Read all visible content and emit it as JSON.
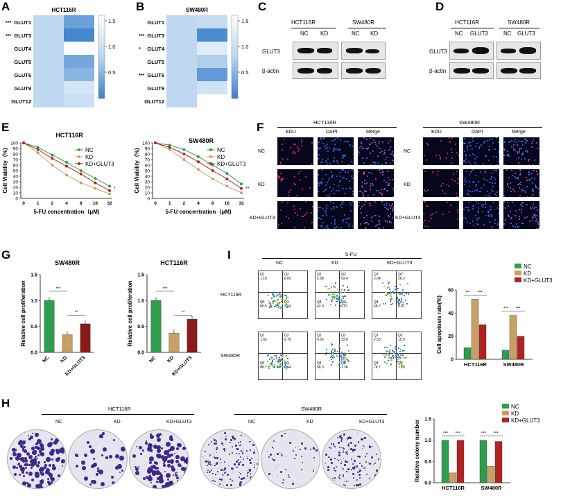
{
  "panels": {
    "A": {
      "letter": "A",
      "title": "HCT116R",
      "rows": [
        "GLUT1",
        "GLUT3",
        "GLUT4",
        "GLUT5",
        "GLUT6",
        "GLUT9",
        "GLUT12"
      ],
      "stars": [
        "***",
        "***",
        "",
        "",
        "",
        "",
        ""
      ],
      "cols": [
        "NC",
        "KD"
      ],
      "colorbar": [
        "1.5",
        "1.0",
        "0.5"
      ]
    },
    "B": {
      "letter": "B",
      "title": "SW480R",
      "rows": [
        "GLUT1",
        "GLUT3",
        "GLUT4",
        "GLUT5",
        "GLUT6",
        "GLUT9",
        "GLUT12"
      ],
      "stars": [
        "",
        "***",
        "*",
        "",
        "***",
        "",
        ""
      ],
      "cols": [
        "NC",
        "KD"
      ],
      "colorbar": [
        "1.5",
        "1.0",
        "0.5"
      ]
    },
    "C": {
      "letter": "C",
      "groups": [
        "HCT116R",
        "SW480R"
      ],
      "lanes": [
        "NC",
        "KD",
        "NC",
        "KD"
      ],
      "rows": [
        "GLUT3",
        "β-actin"
      ]
    },
    "D": {
      "letter": "D",
      "groups": [
        "HCT116R",
        "SW480R"
      ],
      "lanes": [
        "NC",
        "GLUT3",
        "NC",
        "GLUT3"
      ],
      "rows": [
        "GLUT3",
        "β-actin"
      ]
    },
    "E": {
      "letter": "E"
    },
    "F": {
      "letter": "F",
      "groups": [
        "HCT116R",
        "SW480R"
      ],
      "cols": [
        "EDU",
        "DAPI",
        "Merge"
      ],
      "rows": [
        "NC",
        "KD",
        "KD+GLUT3"
      ]
    },
    "G": {
      "letter": "G"
    },
    "I": {
      "letter": "I",
      "top": "5-FU",
      "cols": [
        "NC",
        "KD",
        "KD+GLUT3"
      ],
      "rows": [
        "HCT116R",
        "SW480R"
      ],
      "quads": [
        [
          [
            "1.18",
            "8.65",
            "85.5",
            "3.64"
          ],
          [
            "2.38",
            "53.4",
            "42.0",
            "2.21"
          ],
          [
            "2.04",
            "26.2",
            "68.7",
            "3.01"
          ]
        ],
        [
          [
            "1.65",
            "6.78",
            "88.7",
            "2.94"
          ],
          [
            "5.65",
            "33.8",
            "58.3",
            "1.34"
          ],
          [
            "2.53",
            "15.6",
            "78.7",
            "1.63"
          ]
        ]
      ],
      "qlabels": [
        "Q1",
        "Q2",
        "Q4",
        "Q3"
      ]
    },
    "H": {
      "letter": "H",
      "groups": [
        "HCT116R",
        "SW480R"
      ],
      "cols": [
        "NC",
        "KD",
        "KD+GLUT3"
      ]
    }
  },
  "chart_data": [
    {
      "type": "line",
      "title": "HCT116R",
      "xlabel": "5-FU concentration（μM)",
      "ylabel": "Cell Viability（%)",
      "x": [
        "0",
        "1",
        "2",
        "4",
        "8",
        "16",
        "32"
      ],
      "ylim": [
        0,
        100
      ],
      "yticks": [
        "0",
        "10",
        "20",
        "30",
        "40",
        "50",
        "60",
        "70",
        "80",
        "90",
        "100"
      ],
      "series": [
        {
          "name": "NC",
          "color": "#2e9e4e",
          "values": [
            100,
            92,
            78,
            65,
            50,
            36,
            22
          ]
        },
        {
          "name": "KD",
          "color": "#c8a064",
          "values": [
            100,
            82,
            60,
            42,
            28,
            18,
            8
          ]
        },
        {
          "name": "KD+GLUT3",
          "color": "#b22222",
          "values": [
            100,
            88,
            72,
            58,
            44,
            28,
            14
          ]
        }
      ],
      "annotation": "*"
    },
    {
      "type": "line",
      "title": "SW480R",
      "xlabel": "5-FU concentration（μM)",
      "ylabel": "Cell Viability（%)",
      "x": [
        "0",
        "1",
        "2",
        "4",
        "8",
        "16",
        "32"
      ],
      "ylim": [
        0,
        100
      ],
      "yticks": [
        "0",
        "10",
        "20",
        "30",
        "40",
        "50",
        "60",
        "70",
        "80",
        "90",
        "100"
      ],
      "series": [
        {
          "name": "NC",
          "color": "#2e9e4e",
          "values": [
            100,
            96,
            88,
            75,
            60,
            45,
            26
          ]
        },
        {
          "name": "KD",
          "color": "#c8a064",
          "values": [
            100,
            88,
            70,
            52,
            35,
            22,
            10
          ]
        },
        {
          "name": "KD+GLUT3",
          "color": "#b22222",
          "values": [
            100,
            92,
            80,
            66,
            50,
            35,
            18
          ]
        }
      ],
      "annotation": "**"
    },
    {
      "type": "bar",
      "title": "SW480R",
      "ylabel": "Relative cell proliferation",
      "categories": [
        "NC",
        "KD",
        "KD+GLUT3"
      ],
      "values": [
        1.0,
        0.34,
        0.55
      ],
      "colors": [
        "#2e9e4e",
        "#c8a064",
        "#8b1a1a"
      ],
      "ylim": [
        0,
        1.5
      ],
      "yticks": [
        "0.0",
        "0.5",
        "1.0",
        "1.5"
      ],
      "sig": [
        "***",
        "**"
      ]
    },
    {
      "type": "bar",
      "title": "HCT116R",
      "ylabel": "Relative cell proliferation",
      "categories": [
        "NC",
        "KD",
        "KD+GLUT3"
      ],
      "values": [
        1.0,
        0.37,
        0.64
      ],
      "colors": [
        "#2e9e4e",
        "#c8a064",
        "#8b1a1a"
      ],
      "ylim": [
        0,
        1.5
      ],
      "yticks": [
        "0.0",
        "0.5",
        "1.0",
        "1.5"
      ],
      "sig": [
        "***",
        "**"
      ]
    },
    {
      "type": "bar",
      "ylabel": "Cell apoptosis rate(%)",
      "categories": [
        "HCT116R",
        "SW480R"
      ],
      "series": [
        {
          "name": "NC",
          "color": "#2e9e4e",
          "values": [
            10,
            8
          ]
        },
        {
          "name": "KD",
          "color": "#c8a064",
          "values": [
            52,
            38
          ]
        },
        {
          "name": "KD+GLUT3",
          "color": "#b22222",
          "values": [
            30,
            20
          ]
        }
      ],
      "ylim": [
        0,
        60
      ],
      "yticks": [
        "0",
        "20",
        "40",
        "60"
      ],
      "sig": [
        "***",
        "***",
        "***",
        "***"
      ]
    },
    {
      "type": "bar",
      "ylabel": "Relative colony number",
      "categories": [
        "HCT116R",
        "SW480R"
      ],
      "series": [
        {
          "name": "NC",
          "color": "#2e9e4e",
          "values": [
            1.0,
            1.0
          ]
        },
        {
          "name": "KD",
          "color": "#c8a064",
          "values": [
            0.23,
            0.39
          ]
        },
        {
          "name": "KD+GLUT3",
          "color": "#b22222",
          "values": [
            1.0,
            0.97
          ]
        }
      ],
      "ylim": [
        0,
        1.5
      ],
      "yticks": [
        "0.0",
        "0.5",
        "1.0",
        "1.5"
      ],
      "sig": [
        "***",
        "***",
        "***",
        "***"
      ]
    },
    {
      "type": "heatmap",
      "title": "HCT116R",
      "rows": [
        "GLUT1",
        "GLUT3",
        "GLUT4",
        "GLUT5",
        "GLUT6",
        "GLUT9",
        "GLUT12"
      ],
      "cols": [
        "NC",
        "KD"
      ],
      "values": [
        [
          1,
          0.55
        ],
        [
          1,
          0.35
        ],
        [
          1,
          1.6
        ],
        [
          1,
          0.6
        ],
        [
          1,
          0.7
        ],
        [
          1,
          1.2
        ],
        [
          1,
          1.1
        ]
      ]
    },
    {
      "type": "heatmap",
      "title": "SW480R",
      "rows": [
        "GLUT1",
        "GLUT3",
        "GLUT4",
        "GLUT5",
        "GLUT6",
        "GLUT9",
        "GLUT12"
      ],
      "cols": [
        "NC",
        "KD"
      ],
      "values": [
        [
          1,
          1.05
        ],
        [
          1,
          0.4
        ],
        [
          1,
          1.3
        ],
        [
          1,
          0.9
        ],
        [
          1,
          0.5
        ],
        [
          1,
          1.15
        ],
        [
          1,
          1.6
        ]
      ]
    }
  ]
}
